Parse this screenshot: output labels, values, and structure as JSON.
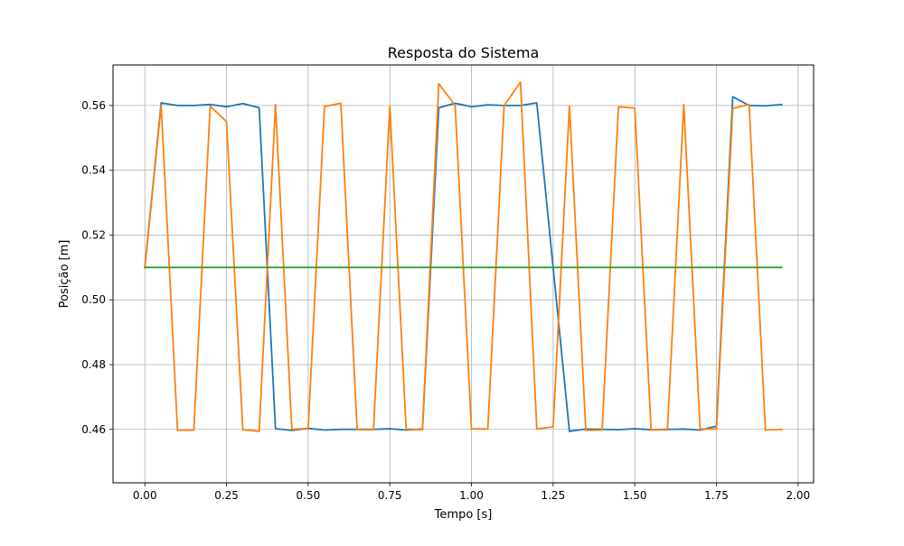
{
  "chart_data": {
    "type": "line",
    "title": "Resposta do Sistema",
    "xlabel": "Tempo [s]",
    "ylabel": "Posição [m]",
    "xlim": [
      -0.0975,
      2.0475
    ],
    "ylim": [
      0.4435,
      0.5725
    ],
    "xticks": [
      0.0,
      0.25,
      0.5,
      0.75,
      1.0,
      1.25,
      1.5,
      1.75,
      2.0
    ],
    "xtick_labels": [
      "0.00",
      "0.25",
      "0.50",
      "0.75",
      "1.00",
      "1.25",
      "1.50",
      "1.75",
      "2.00"
    ],
    "yticks": [
      0.46,
      0.48,
      0.5,
      0.52,
      0.54,
      0.56
    ],
    "ytick_labels": [
      "0.46",
      "0.48",
      "0.50",
      "0.52",
      "0.54",
      "0.56"
    ],
    "grid": true,
    "x": [
      0.0,
      0.05,
      0.1,
      0.15,
      0.2,
      0.25,
      0.3,
      0.35,
      0.4,
      0.45,
      0.5,
      0.55,
      0.6,
      0.65,
      0.7,
      0.75,
      0.8,
      0.85,
      0.9,
      0.95,
      1.0,
      1.05,
      1.1,
      1.15,
      1.2,
      1.25,
      1.3,
      1.35,
      1.4,
      1.45,
      1.5,
      1.55,
      1.6,
      1.65,
      1.7,
      1.75,
      1.8,
      1.85,
      1.9,
      1.95
    ],
    "series": [
      {
        "color": "#1f77b4",
        "values": [
          0.51,
          0.5608,
          0.56,
          0.56,
          0.5603,
          0.5596,
          0.5606,
          0.5593,
          0.4602,
          0.4597,
          0.4603,
          0.4598,
          0.46,
          0.46,
          0.46,
          0.4602,
          0.4598,
          0.4601,
          0.5593,
          0.5607,
          0.5596,
          0.5602,
          0.56,
          0.56,
          0.5608,
          0.51,
          0.4594,
          0.4601,
          0.46,
          0.4599,
          0.4602,
          0.4599,
          0.46,
          0.4601,
          0.4598,
          0.461,
          0.5627,
          0.56,
          0.5599,
          0.5603
        ]
      },
      {
        "color": "#ff7f0e",
        "values": [
          0.51,
          0.56,
          0.4597,
          0.4598,
          0.5598,
          0.555,
          0.4599,
          0.4594,
          0.5603,
          0.46,
          0.4603,
          0.5597,
          0.5607,
          0.4599,
          0.4599,
          0.5597,
          0.4601,
          0.4599,
          0.5667,
          0.56,
          0.4602,
          0.4601,
          0.56,
          0.5672,
          0.4601,
          0.4608,
          0.5599,
          0.4597,
          0.4598,
          0.5596,
          0.5592,
          0.4598,
          0.4599,
          0.5603,
          0.4601,
          0.4601,
          0.5591,
          0.5603,
          0.4598,
          0.46
        ]
      },
      {
        "color": "#2ca02c",
        "values": [
          0.51,
          0.51,
          0.51,
          0.51,
          0.51,
          0.51,
          0.51,
          0.51,
          0.51,
          0.51,
          0.51,
          0.51,
          0.51,
          0.51,
          0.51,
          0.51,
          0.51,
          0.51,
          0.51,
          0.51,
          0.51,
          0.51,
          0.51,
          0.51,
          0.51,
          0.51,
          0.51,
          0.51,
          0.51,
          0.51,
          0.51,
          0.51,
          0.51,
          0.51,
          0.51,
          0.51,
          0.51,
          0.51,
          0.51,
          0.51
        ]
      }
    ]
  }
}
